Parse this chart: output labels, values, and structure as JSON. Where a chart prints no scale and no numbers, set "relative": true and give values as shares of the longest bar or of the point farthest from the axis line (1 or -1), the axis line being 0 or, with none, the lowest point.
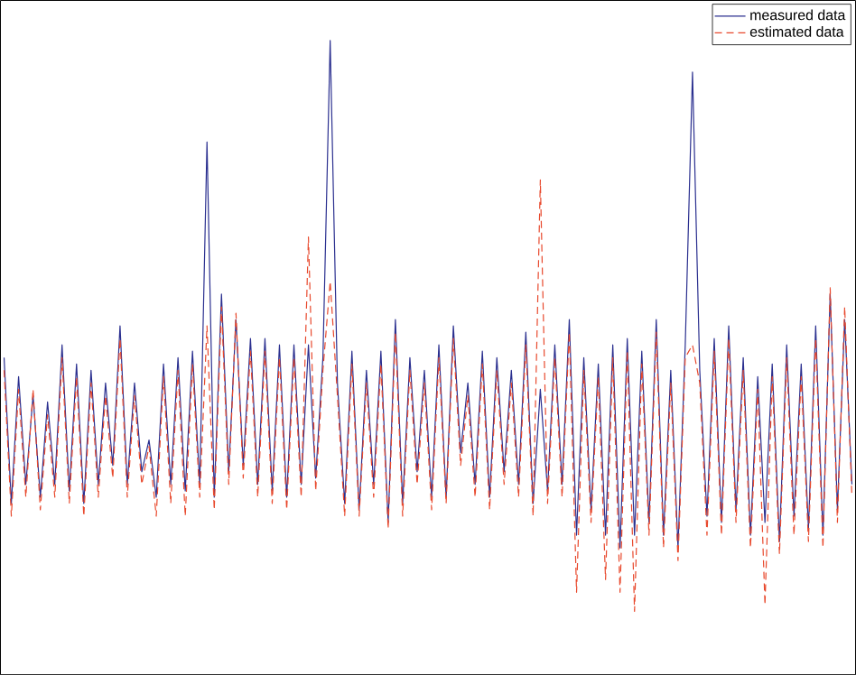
{
  "chart_data": {
    "type": "line",
    "relative": true,
    "categories": [
      null,
      null,
      null,
      null,
      null,
      null,
      null,
      null,
      null,
      null,
      null,
      null,
      null,
      null,
      null,
      null,
      null,
      null,
      null,
      null,
      null,
      null,
      null,
      null,
      null,
      null,
      null,
      null,
      null,
      null,
      null,
      null,
      null,
      null,
      null,
      null,
      null,
      null,
      null,
      null,
      null,
      null,
      null,
      null,
      null,
      null,
      null,
      null,
      null,
      null,
      null,
      null,
      null,
      null,
      null,
      null,
      null,
      null,
      null,
      null,
      null,
      null,
      null,
      null,
      null,
      null,
      null,
      null,
      null,
      null,
      null,
      null,
      null,
      null,
      null,
      null,
      null,
      null,
      null,
      null,
      null,
      null,
      null,
      null,
      null,
      null,
      null,
      null,
      null,
      null,
      null,
      null,
      null,
      null,
      null,
      null,
      null,
      null,
      null,
      null,
      null,
      null,
      null,
      null,
      null,
      null,
      null,
      null,
      null,
      null,
      null,
      null,
      null,
      null,
      null,
      null,
      null,
      null
    ],
    "legend": "top right",
    "series": [
      {
        "name": "measured data",
        "color": "#2a2f8f",
        "line_style": "solid",
        "values": [
          0.5,
          0.27,
          0.47,
          0.3,
          0.44,
          0.28,
          0.43,
          0.3,
          0.52,
          0.29,
          0.49,
          0.27,
          0.48,
          0.3,
          0.46,
          0.33,
          0.55,
          0.3,
          0.46,
          0.32,
          0.37,
          0.28,
          0.49,
          0.3,
          0.5,
          0.29,
          0.51,
          0.3,
          0.84,
          0.28,
          0.6,
          0.32,
          0.56,
          0.33,
          0.53,
          0.3,
          0.53,
          0.29,
          0.52,
          0.28,
          0.52,
          0.3,
          0.52,
          0.31,
          0.5,
          1.0,
          0.46,
          0.27,
          0.51,
          0.26,
          0.48,
          0.3,
          0.51,
          0.24,
          0.56,
          0.27,
          0.5,
          0.32,
          0.48,
          0.28,
          0.52,
          0.28,
          0.55,
          0.35,
          0.46,
          0.3,
          0.51,
          0.28,
          0.5,
          0.32,
          0.48,
          0.3,
          0.54,
          0.27,
          0.45,
          0.29,
          0.52,
          0.3,
          0.56,
          0.22,
          0.5,
          0.26,
          0.49,
          0.22,
          0.52,
          0.2,
          0.53,
          0.22,
          0.51,
          0.24,
          0.56,
          0.22,
          0.48,
          0.2,
          0.52,
          0.95,
          0.48,
          0.25,
          0.53,
          0.24,
          0.55,
          0.26,
          0.5,
          0.22,
          0.47,
          0.24,
          0.49,
          0.21,
          0.52,
          0.25,
          0.49,
          0.23,
          0.55,
          0.22,
          0.6,
          0.26,
          0.56,
          0.3
        ]
      },
      {
        "name": "estimated data",
        "color": "#e8482c",
        "line_style": "dashed",
        "values": [
          0.48,
          0.25,
          0.45,
          0.28,
          0.45,
          0.26,
          0.41,
          0.28,
          0.5,
          0.27,
          0.47,
          0.25,
          0.46,
          0.28,
          0.44,
          0.31,
          0.53,
          0.28,
          0.44,
          0.3,
          0.36,
          0.25,
          0.47,
          0.27,
          0.48,
          0.25,
          0.49,
          0.28,
          0.55,
          0.26,
          0.58,
          0.3,
          0.57,
          0.31,
          0.51,
          0.28,
          0.51,
          0.27,
          0.5,
          0.26,
          0.5,
          0.28,
          0.69,
          0.29,
          0.48,
          0.62,
          0.44,
          0.25,
          0.49,
          0.25,
          0.46,
          0.28,
          0.49,
          0.23,
          0.54,
          0.25,
          0.48,
          0.3,
          0.46,
          0.26,
          0.5,
          0.27,
          0.53,
          0.33,
          0.44,
          0.28,
          0.49,
          0.26,
          0.48,
          0.3,
          0.46,
          0.28,
          0.52,
          0.25,
          0.78,
          0.27,
          0.5,
          0.28,
          0.54,
          0.13,
          0.48,
          0.24,
          0.47,
          0.15,
          0.5,
          0.13,
          0.51,
          0.1,
          0.49,
          0.22,
          0.54,
          0.2,
          0.46,
          0.18,
          0.5,
          0.52,
          0.46,
          0.22,
          0.51,
          0.22,
          0.53,
          0.24,
          0.48,
          0.2,
          0.45,
          0.11,
          0.47,
          0.19,
          0.5,
          0.22,
          0.47,
          0.21,
          0.53,
          0.2,
          0.61,
          0.24,
          0.58,
          0.28
        ]
      }
    ]
  }
}
